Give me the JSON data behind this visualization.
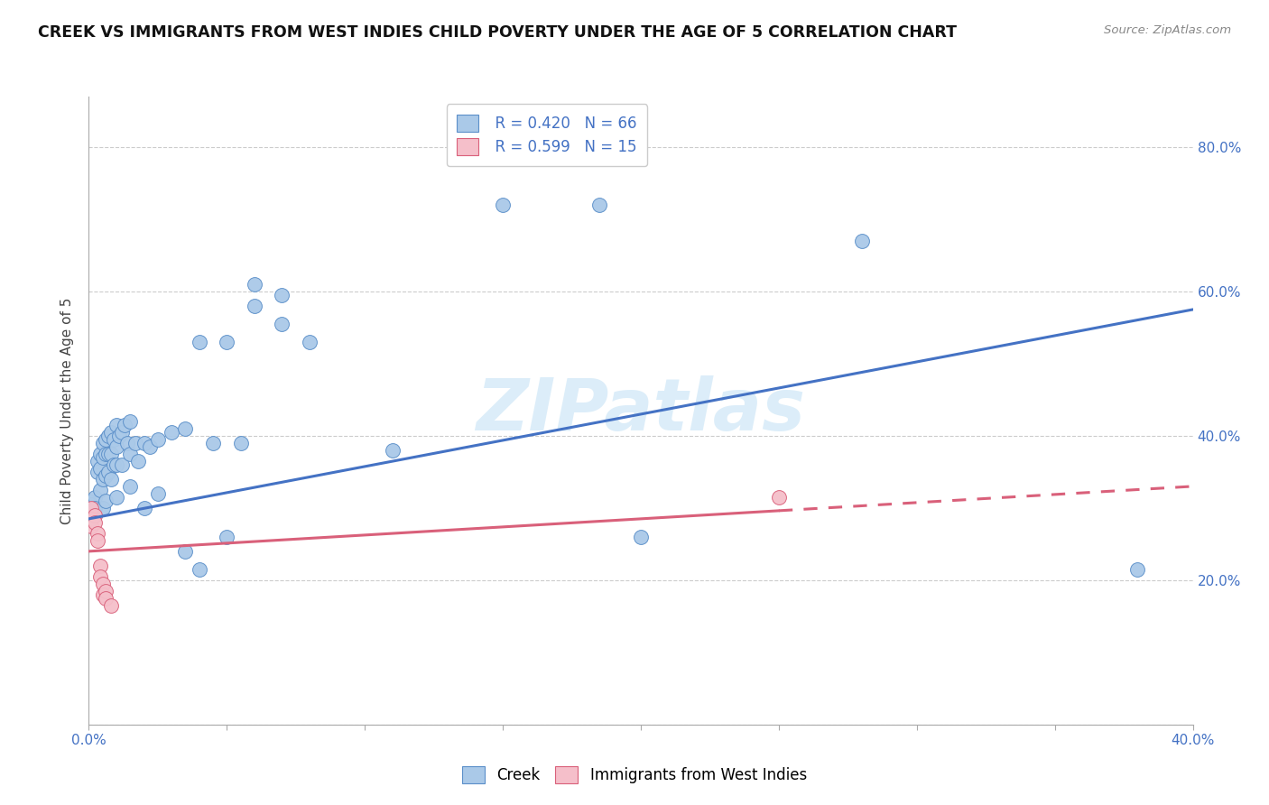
{
  "title": "CREEK VS IMMIGRANTS FROM WEST INDIES CHILD POVERTY UNDER THE AGE OF 5 CORRELATION CHART",
  "source": "Source: ZipAtlas.com",
  "ylabel_label": "Child Poverty Under the Age of 5",
  "x_min": 0.0,
  "x_max": 0.4,
  "y_min": 0.0,
  "y_max": 0.87,
  "x_ticks": [
    0.0,
    0.05,
    0.1,
    0.15,
    0.2,
    0.25,
    0.3,
    0.35,
    0.4
  ],
  "x_tick_labels": [
    "0.0%",
    "",
    "",
    "",
    "",
    "",
    "",
    "",
    "40.0%"
  ],
  "y_ticks": [
    0.0,
    0.2,
    0.4,
    0.6,
    0.8
  ],
  "y_tick_labels_right": [
    "",
    "20.0%",
    "40.0%",
    "60.0%",
    "80.0%"
  ],
  "creek_color": "#aac9e8",
  "creek_edge_color": "#5b8fc9",
  "wi_color": "#f5bfca",
  "wi_edge_color": "#d9607a",
  "creek_line_color": "#4472c4",
  "wi_line_color": "#d9607a",
  "legend_R_color": "#4472c4",
  "watermark": "ZIPatlas",
  "creek_scatter": [
    [
      0.0,
      0.31
    ],
    [
      0.001,
      0.305
    ],
    [
      0.001,
      0.295
    ],
    [
      0.001,
      0.285
    ],
    [
      0.002,
      0.315
    ],
    [
      0.002,
      0.3
    ],
    [
      0.002,
      0.29
    ],
    [
      0.003,
      0.365
    ],
    [
      0.003,
      0.35
    ],
    [
      0.004,
      0.375
    ],
    [
      0.004,
      0.355
    ],
    [
      0.004,
      0.325
    ],
    [
      0.005,
      0.39
    ],
    [
      0.005,
      0.37
    ],
    [
      0.005,
      0.34
    ],
    [
      0.005,
      0.3
    ],
    [
      0.006,
      0.395
    ],
    [
      0.006,
      0.375
    ],
    [
      0.006,
      0.345
    ],
    [
      0.006,
      0.31
    ],
    [
      0.007,
      0.4
    ],
    [
      0.007,
      0.375
    ],
    [
      0.007,
      0.35
    ],
    [
      0.008,
      0.405
    ],
    [
      0.008,
      0.375
    ],
    [
      0.008,
      0.34
    ],
    [
      0.009,
      0.395
    ],
    [
      0.009,
      0.36
    ],
    [
      0.01,
      0.415
    ],
    [
      0.01,
      0.385
    ],
    [
      0.01,
      0.36
    ],
    [
      0.01,
      0.315
    ],
    [
      0.011,
      0.4
    ],
    [
      0.012,
      0.405
    ],
    [
      0.012,
      0.36
    ],
    [
      0.013,
      0.415
    ],
    [
      0.014,
      0.39
    ],
    [
      0.015,
      0.42
    ],
    [
      0.015,
      0.375
    ],
    [
      0.015,
      0.33
    ],
    [
      0.017,
      0.39
    ],
    [
      0.018,
      0.365
    ],
    [
      0.02,
      0.39
    ],
    [
      0.02,
      0.3
    ],
    [
      0.022,
      0.385
    ],
    [
      0.025,
      0.395
    ],
    [
      0.025,
      0.32
    ],
    [
      0.03,
      0.405
    ],
    [
      0.035,
      0.41
    ],
    [
      0.035,
      0.24
    ],
    [
      0.04,
      0.53
    ],
    [
      0.04,
      0.215
    ],
    [
      0.045,
      0.39
    ],
    [
      0.05,
      0.53
    ],
    [
      0.05,
      0.26
    ],
    [
      0.055,
      0.39
    ],
    [
      0.06,
      0.61
    ],
    [
      0.06,
      0.58
    ],
    [
      0.07,
      0.595
    ],
    [
      0.07,
      0.555
    ],
    [
      0.08,
      0.53
    ],
    [
      0.11,
      0.38
    ],
    [
      0.15,
      0.72
    ],
    [
      0.185,
      0.72
    ],
    [
      0.28,
      0.67
    ],
    [
      0.38,
      0.215
    ],
    [
      0.2,
      0.26
    ]
  ],
  "wi_scatter": [
    [
      0.001,
      0.3
    ],
    [
      0.001,
      0.285
    ],
    [
      0.001,
      0.275
    ],
    [
      0.002,
      0.29
    ],
    [
      0.002,
      0.28
    ],
    [
      0.003,
      0.265
    ],
    [
      0.003,
      0.255
    ],
    [
      0.004,
      0.22
    ],
    [
      0.004,
      0.205
    ],
    [
      0.005,
      0.195
    ],
    [
      0.005,
      0.18
    ],
    [
      0.006,
      0.185
    ],
    [
      0.006,
      0.175
    ],
    [
      0.008,
      0.165
    ],
    [
      0.25,
      0.315
    ]
  ],
  "creek_trendline": [
    [
      0.0,
      0.285
    ],
    [
      0.4,
      0.575
    ]
  ],
  "wi_trendline": [
    [
      0.0,
      0.24
    ],
    [
      0.4,
      0.33
    ]
  ],
  "wi_trend_dashed_from": 0.25
}
